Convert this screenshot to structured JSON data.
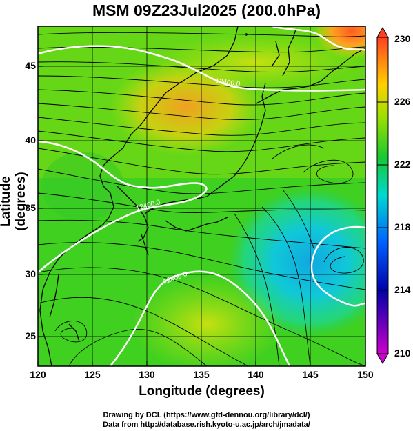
{
  "title": "MSM 09Z23Jul2025 (200.0hPa)",
  "x_axis": {
    "label": "Longitude (degrees)",
    "ticks": [
      "120",
      "125",
      "130",
      "135",
      "140",
      "145",
      "150"
    ]
  },
  "y_axis": {
    "label": "Latitude  (degrees)",
    "ticks": [
      "25",
      "30",
      "35",
      "40",
      "45"
    ]
  },
  "colorbar": {
    "ticks": [
      "230",
      "226",
      "222",
      "218",
      "214",
      "210"
    ]
  },
  "contour_labels": [
    "12400.0",
    "12400.0",
    "12400.0"
  ],
  "credits": {
    "line1": "Drawing by DCL (https://www.gfd-dennou.org/library/dcl/)",
    "line2": "Data from http://database.rish.kyoto-u.ac.jp/arch/jmadata/"
  }
}
